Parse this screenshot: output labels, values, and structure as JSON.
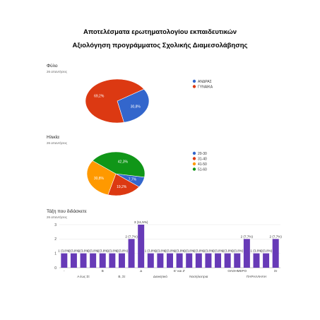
{
  "titles": {
    "line1": "Αποτελέσματα ερωτηματολογίου εκπαιδευτικών",
    "line2": "Αξιολόγηση προγράμματος Σχολικής Διαμεσολάβησης"
  },
  "chart_data": [
    {
      "type": "pie",
      "title": "Φύλο",
      "subtitle": "26 απαντήσεις",
      "slices": [
        {
          "label": "ΑΝΔΡΑΣ",
          "percent": 30.8,
          "text": "30,8%",
          "color": "#3366cc"
        },
        {
          "label": "ΓΥΝΑΙΚΑ",
          "percent": 69.2,
          "text": "69,2%",
          "color": "#dc3912"
        }
      ],
      "legend_position": "right"
    },
    {
      "type": "pie",
      "title": "Ηλικία",
      "subtitle": "26 απαντήσεις",
      "slices": [
        {
          "label": "20-30",
          "percent": 7.7,
          "text": "7,7%",
          "color": "#3366cc"
        },
        {
          "label": "31-40",
          "percent": 19.2,
          "text": "19,2%",
          "color": "#dc3912"
        },
        {
          "label": "41-50",
          "percent": 30.8,
          "text": "30,8%",
          "color": "#ff9900"
        },
        {
          "label": "51-60",
          "percent": 42.3,
          "text": "42,3%",
          "color": "#109618"
        }
      ],
      "legend_position": "right"
    },
    {
      "type": "bar",
      "title": "Τάξη που διδάσκετε",
      "subtitle": "26 απαντήσεις",
      "ylim": [
        0,
        3
      ],
      "yticks": [
        0,
        1,
        2,
        3
      ],
      "grid": true,
      "bar_color": "#673ab7",
      "values": [
        1,
        1,
        1,
        1,
        1,
        1,
        1,
        2,
        3,
        1,
        1,
        1,
        1,
        1,
        1,
        1,
        1,
        1,
        1,
        2,
        1,
        1,
        2
      ],
      "data_labels": [
        "1 (3,8%)",
        "1 (3,8%)",
        "1 (3,8%)",
        "1 (3,8%)",
        "1 (3,8%)",
        "1 (3,8%)",
        "1 (3,8%)",
        "2 (7,7%)",
        "3 (11,5%)",
        "1 (3,8%)",
        "1 (3,8%)",
        "1 (3,8%)",
        "1 (3,8%)",
        "1 (3,8%)",
        "1 (3,8%)",
        "1 (3,8%)",
        "1 (3,8%)",
        "1 (3,8%)",
        "1 (3,8%)",
        "2 (7,7%)",
        "1 (3,8%)",
        "1 (3,8%)",
        "2 (7,7%)"
      ],
      "category_labels": [
        {
          "index": 0,
          "text": "-",
          "row": 0
        },
        {
          "index": 2,
          "text": "Α έως Στ",
          "row": 1
        },
        {
          "index": 4,
          "text": "Β",
          "row": 0
        },
        {
          "index": 6,
          "text": "Β, Στ",
          "row": 1
        },
        {
          "index": 8,
          "text": "Δ",
          "row": 0
        },
        {
          "index": 10,
          "text": "Διοικητικό",
          "row": 1
        },
        {
          "index": 12,
          "text": "Ε' και Ζ'",
          "row": 0
        },
        {
          "index": 14,
          "text": "Νοσηλευτρια",
          "row": 1
        },
        {
          "index": 18,
          "text": "ΟΛΟΗΜΕΡΟ",
          "row": 0
        },
        {
          "index": 20,
          "text": "ΠΑΡΑΛΛΗΛΗ",
          "row": 1
        },
        {
          "index": 22,
          "text": "Στ",
          "row": 0
        }
      ]
    }
  ]
}
